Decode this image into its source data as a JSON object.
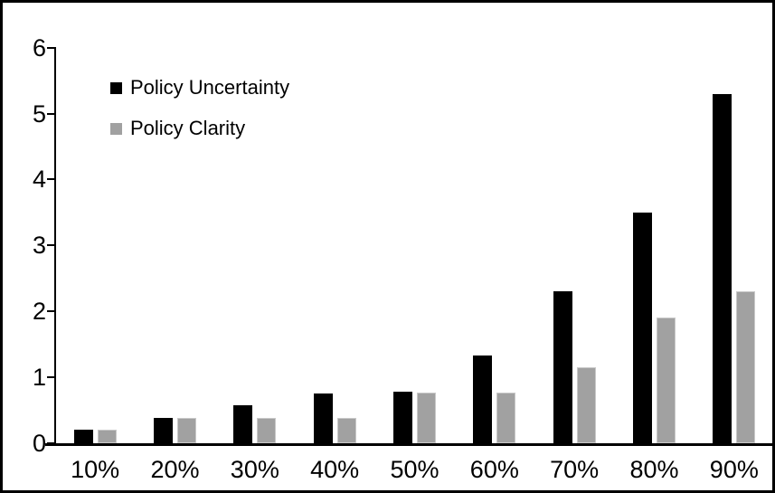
{
  "chart_data": {
    "type": "bar",
    "title": "",
    "xlabel": "",
    "ylabel": "",
    "categories": [
      "10%",
      "20%",
      "30%",
      "40%",
      "50%",
      "60%",
      "70%",
      "80%",
      "90%"
    ],
    "series": [
      {
        "name": "Policy Uncertainty",
        "color": "#000000",
        "values": [
          0.2,
          0.38,
          0.57,
          0.76,
          0.78,
          1.33,
          2.3,
          3.5,
          5.3
        ]
      },
      {
        "name": "Policy Clarity",
        "color": "#a1a1a1",
        "values": [
          0.2,
          0.38,
          0.38,
          0.38,
          0.77,
          0.77,
          1.15,
          1.9,
          2.3
        ]
      }
    ],
    "ylim": [
      0,
      6
    ],
    "yticks": [
      0,
      1,
      2,
      3,
      4,
      5,
      6
    ],
    "grid": false,
    "legend_position": "inside-top-left",
    "frame_color": "#000000",
    "background_color": "#ffffff"
  }
}
